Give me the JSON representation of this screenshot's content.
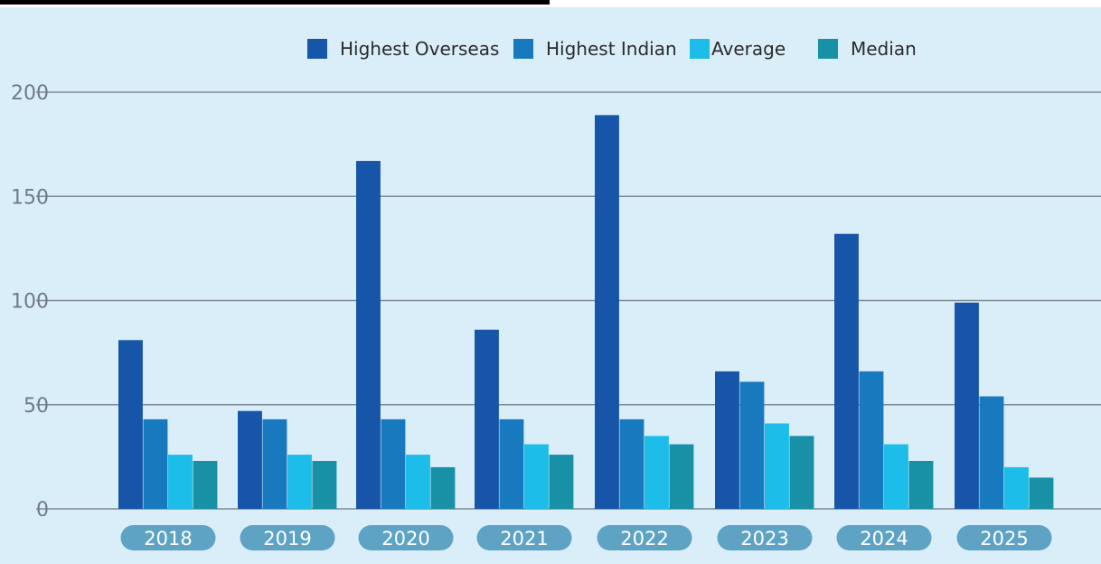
{
  "chart_data": {
    "type": "bar",
    "title": "",
    "xlabel": "",
    "ylabel": "",
    "categories": [
      "2018",
      "2019",
      "2020",
      "2021",
      "2022",
      "2023",
      "2024",
      "2025"
    ],
    "ylim": [
      0,
      200
    ],
    "yticks": [
      "0",
      "50",
      "100",
      "150",
      "200"
    ],
    "grid": true,
    "legend_position": "top-center",
    "series": [
      {
        "name": "Highest Overseas",
        "color": "#1655a8",
        "values": [
          81,
          47,
          167,
          86,
          189,
          66,
          132,
          99
        ]
      },
      {
        "name": "Highest Indian",
        "color": "#1879bf",
        "values": [
          43,
          43,
          43,
          43,
          43,
          61,
          66,
          54
        ]
      },
      {
        "name": "Average",
        "color": "#1cbde9",
        "values": [
          26,
          26,
          26,
          31,
          35,
          41,
          31,
          20
        ]
      },
      {
        "name": "Median",
        "color": "#1890a6",
        "values": [
          23,
          23,
          20,
          26,
          31,
          35,
          23,
          15
        ]
      }
    ],
    "colors": {
      "background": "#daeefa",
      "gridline": "#7f8a92",
      "year_pill": "#5ea3c4"
    }
  }
}
